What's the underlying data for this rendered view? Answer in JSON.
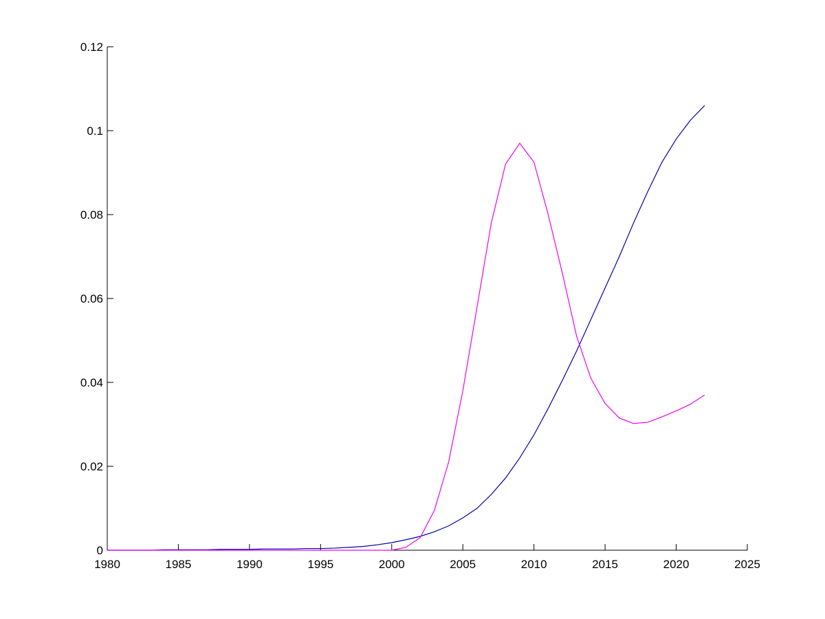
{
  "chart_data": {
    "type": "line",
    "x": [
      1980,
      1981,
      1982,
      1983,
      1984,
      1985,
      1986,
      1987,
      1988,
      1989,
      1990,
      1991,
      1992,
      1993,
      1994,
      1995,
      1996,
      1997,
      1998,
      1999,
      2000,
      2001,
      2002,
      2003,
      2004,
      2005,
      2006,
      2007,
      2008,
      2009,
      2010,
      2011,
      2012,
      2013,
      2014,
      2015,
      2016,
      2017,
      2018,
      2019,
      2020,
      2021,
      2022
    ],
    "series": [
      {
        "color": "#0000aa",
        "values": [
          0,
          0,
          0,
          0,
          0.0001,
          0.0001,
          0.0001,
          0.0001,
          0.0002,
          0.0002,
          0.0002,
          0.0003,
          0.0003,
          0.0003,
          0.0004,
          0.0004,
          0.0005,
          0.0007,
          0.0009,
          0.0013,
          0.0018,
          0.0025,
          0.0033,
          0.0044,
          0.0058,
          0.0077,
          0.01,
          0.0133,
          0.0172,
          0.022,
          0.0275,
          0.0338,
          0.0405,
          0.0475,
          0.055,
          0.0625,
          0.07,
          0.078,
          0.0855,
          0.0925,
          0.098,
          0.1025,
          0.106
        ]
      },
      {
        "color": "#ee00ee",
        "values": [
          0,
          0,
          0,
          0,
          0,
          0,
          0,
          0,
          0,
          0,
          0,
          0,
          0,
          0,
          0,
          0,
          0,
          0,
          0,
          0,
          0,
          0.0007,
          0.003,
          0.0095,
          0.021,
          0.038,
          0.058,
          0.078,
          0.092,
          0.097,
          0.0925,
          0.08,
          0.066,
          0.051,
          0.041,
          0.035,
          0.0315,
          0.0302,
          0.0305,
          0.0318,
          0.0332,
          0.0348,
          0.037
        ]
      }
    ],
    "xlim": [
      1980,
      2025
    ],
    "xticks": [
      1980,
      1985,
      1990,
      1995,
      2000,
      2005,
      2010,
      2015,
      2020,
      2025
    ],
    "ylim": [
      0,
      0.12
    ],
    "yticks": [
      0,
      0.02,
      0.04,
      0.06,
      0.08,
      0.1,
      0.12
    ]
  }
}
